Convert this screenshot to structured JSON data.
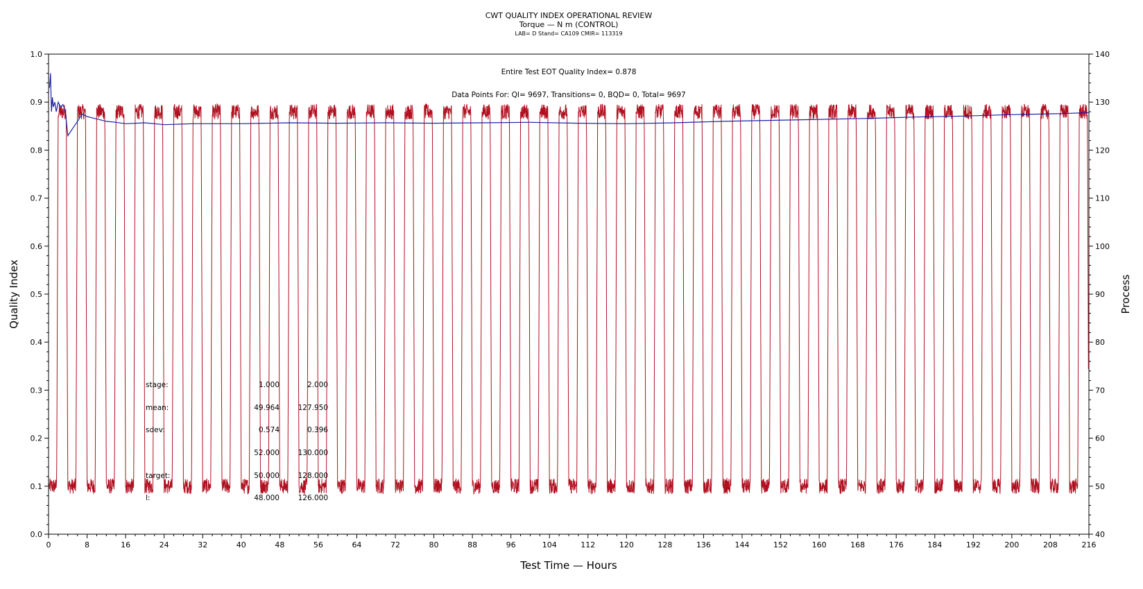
{
  "chart_data": {
    "type": "line",
    "title": "CWT QUALITY INDEX OPERATIONAL REVIEW",
    "subtitle": "Torque — N m (CONTROL)",
    "subsubtitle": "LAB= D Stand= CA109 CMIR= 113319",
    "xlabel": "Test Time — Hours",
    "ylabel": "Quality Index",
    "y2label": "Process",
    "xlim": [
      0,
      216
    ],
    "ylim": [
      0,
      1.0
    ],
    "y2lim": [
      40,
      140
    ],
    "x_ticks": [
      "0",
      "8",
      "16",
      "24",
      "32",
      "40",
      "48",
      "56",
      "64",
      "72",
      "80",
      "88",
      "96",
      "104",
      "112",
      "120",
      "128",
      "136",
      "144",
      "152",
      "160",
      "168",
      "176",
      "184",
      "192",
      "200",
      "208",
      "216"
    ],
    "y_ticks": [
      "0.0",
      "0.1",
      "0.2",
      "0.3",
      "0.4",
      "0.5",
      "0.6",
      "0.7",
      "0.8",
      "0.9",
      "1.0"
    ],
    "y2_ticks": [
      "40",
      "50",
      "60",
      "70",
      "80",
      "90",
      "100",
      "110",
      "120",
      "130",
      "140"
    ],
    "grid": false,
    "annotation_line1": "Entire Test EOT Quality Index=   0.878",
    "annotation_line2": "Data Points For: QI=  9697, Transitions=     0, BQD=     0, Total=  9697",
    "stats": {
      "rows": [
        {
          "label": "stage:",
          "v1": "1.000",
          "v2": "2.000"
        },
        {
          "label": "mean:",
          "v1": "49.964",
          "v2": "127.950"
        },
        {
          "label": "sdev:",
          "v1": "0.574",
          "v2": "0.396"
        },
        {
          "label": "",
          "v1": "52.000",
          "v2": "130.000"
        },
        {
          "label": "target:",
          "v1": "50.000",
          "v2": "128.000"
        },
        {
          "label": "l:",
          "v1": "48.000",
          "v2": "126.000"
        }
      ]
    },
    "series": [
      {
        "color": "#1a1fa8",
        "axis": "left",
        "x": [
          0.2,
          0.4,
          0.6,
          0.8,
          1.0,
          1.3,
          1.6,
          2.0,
          2.5,
          3.0,
          3.5,
          4.0,
          5,
          6,
          7,
          8,
          10,
          12,
          14,
          16,
          20,
          24,
          30,
          40,
          50,
          60,
          70,
          80,
          90,
          100,
          110,
          120,
          130,
          140,
          150,
          160,
          170,
          180,
          190,
          200,
          210,
          216
        ],
        "values": [
          0.93,
          0.96,
          0.88,
          0.91,
          0.89,
          0.9,
          0.88,
          0.9,
          0.89,
          0.895,
          0.88,
          0.83,
          0.845,
          0.86,
          0.875,
          0.87,
          0.865,
          0.86,
          0.858,
          0.855,
          0.857,
          0.853,
          0.855,
          0.855,
          0.857,
          0.856,
          0.857,
          0.856,
          0.857,
          0.858,
          0.856,
          0.855,
          0.857,
          0.86,
          0.862,
          0.864,
          0.866,
          0.869,
          0.871,
          0.874,
          0.876,
          0.878
        ]
      },
      {
        "color": "#b01020",
        "axis": "right",
        "pattern": "square_wave",
        "period_hours": 4,
        "low_value": 50,
        "high_value": 128
      }
    ]
  }
}
